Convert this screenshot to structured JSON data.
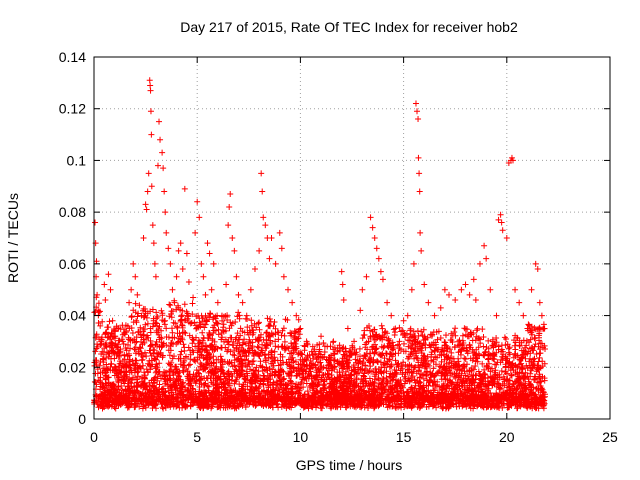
{
  "chart_data": {
    "type": "scatter",
    "title": "Day 217 of 2015, Rate Of TEC Index for receiver hob2",
    "xlabel": "GPS time / hours",
    "ylabel": "ROTI / TECUs",
    "xlim": [
      0,
      25
    ],
    "ylim": [
      0,
      0.14
    ],
    "xticks": [
      0,
      5,
      10,
      15,
      20,
      25
    ],
    "xtick_labels": [
      "0",
      "5",
      "10",
      "15",
      "20",
      "25"
    ],
    "yticks": [
      0,
      0.02,
      0.04,
      0.06,
      0.08,
      0.1,
      0.12,
      0.14
    ],
    "ytick_labels": [
      "0",
      "0.02",
      "0.04",
      "0.06",
      "0.08",
      "0.1",
      "0.12",
      "0.14"
    ],
    "grid": true,
    "marker": "+",
    "color": "#ff0000",
    "series": [
      {
        "name": "ROTI",
        "points": [
          [
            0.05,
            0.076
          ],
          [
            0.08,
            0.068
          ],
          [
            0.12,
            0.061
          ],
          [
            0.1,
            0.055
          ],
          [
            0.15,
            0.048
          ],
          [
            0.2,
            0.042
          ],
          [
            0.3,
            0.036
          ],
          [
            0.35,
            0.03
          ],
          [
            0.4,
            0.026
          ],
          [
            0.45,
            0.022
          ],
          [
            0.5,
            0.052
          ],
          [
            0.55,
            0.046
          ],
          [
            0.7,
            0.056
          ],
          [
            0.8,
            0.05
          ],
          [
            0.9,
            0.038
          ],
          [
            1.0,
            0.032
          ],
          [
            1.1,
            0.028
          ],
          [
            1.2,
            0.024
          ],
          [
            1.4,
            0.03
          ],
          [
            1.5,
            0.021
          ],
          [
            1.7,
            0.045
          ],
          [
            1.8,
            0.05
          ],
          [
            1.9,
            0.06
          ],
          [
            2.0,
            0.055
          ],
          [
            2.1,
            0.048
          ],
          [
            2.2,
            0.044
          ],
          [
            2.3,
            0.04
          ],
          [
            2.4,
            0.07
          ],
          [
            2.5,
            0.083
          ],
          [
            2.55,
            0.081
          ],
          [
            2.6,
            0.088
          ],
          [
            2.65,
            0.095
          ],
          [
            2.7,
            0.131
          ],
          [
            2.72,
            0.129
          ],
          [
            2.74,
            0.127
          ],
          [
            2.76,
            0.119
          ],
          [
            2.78,
            0.11
          ],
          [
            2.8,
            0.09
          ],
          [
            2.85,
            0.075
          ],
          [
            2.9,
            0.068
          ],
          [
            2.95,
            0.06
          ],
          [
            3.0,
            0.055
          ],
          [
            3.1,
            0.098
          ],
          [
            3.15,
            0.115
          ],
          [
            3.2,
            0.108
          ],
          [
            3.3,
            0.103
          ],
          [
            3.35,
            0.097
          ],
          [
            3.4,
            0.088
          ],
          [
            3.45,
            0.08
          ],
          [
            3.5,
            0.072
          ],
          [
            3.6,
            0.066
          ],
          [
            3.7,
            0.06
          ],
          [
            3.8,
            0.05
          ],
          [
            3.9,
            0.045
          ],
          [
            4.0,
            0.055
          ],
          [
            4.1,
            0.065
          ],
          [
            4.2,
            0.068
          ],
          [
            4.3,
            0.058
          ],
          [
            4.4,
            0.089
          ],
          [
            4.5,
            0.064
          ],
          [
            4.6,
            0.053
          ],
          [
            4.8,
            0.047
          ],
          [
            4.9,
            0.072
          ],
          [
            5.0,
            0.084
          ],
          [
            5.1,
            0.078
          ],
          [
            5.2,
            0.06
          ],
          [
            5.3,
            0.055
          ],
          [
            5.4,
            0.048
          ],
          [
            5.5,
            0.068
          ],
          [
            5.6,
            0.064
          ],
          [
            5.7,
            0.05
          ],
          [
            5.8,
            0.06
          ],
          [
            6.0,
            0.045
          ],
          [
            6.2,
            0.04
          ],
          [
            6.4,
            0.052
          ],
          [
            6.5,
            0.075
          ],
          [
            6.55,
            0.082
          ],
          [
            6.6,
            0.087
          ],
          [
            6.7,
            0.07
          ],
          [
            6.8,
            0.065
          ],
          [
            6.9,
            0.055
          ],
          [
            7.0,
            0.048
          ],
          [
            7.2,
            0.045
          ],
          [
            7.4,
            0.04
          ],
          [
            7.6,
            0.05
          ],
          [
            7.8,
            0.058
          ],
          [
            8.0,
            0.065
          ],
          [
            8.1,
            0.095
          ],
          [
            8.15,
            0.088
          ],
          [
            8.2,
            0.078
          ],
          [
            8.3,
            0.075
          ],
          [
            8.4,
            0.07
          ],
          [
            8.5,
            0.062
          ],
          [
            8.6,
            0.07
          ],
          [
            8.8,
            0.06
          ],
          [
            9.0,
            0.072
          ],
          [
            9.1,
            0.066
          ],
          [
            9.2,
            0.055
          ],
          [
            9.4,
            0.05
          ],
          [
            9.6,
            0.045
          ],
          [
            9.8,
            0.04
          ],
          [
            10.0,
            0.035
          ],
          [
            10.3,
            0.03
          ],
          [
            10.6,
            0.028
          ],
          [
            11.0,
            0.032
          ],
          [
            11.3,
            0.028
          ],
          [
            11.6,
            0.03
          ],
          [
            12.0,
            0.057
          ],
          [
            12.05,
            0.052
          ],
          [
            12.1,
            0.046
          ],
          [
            12.3,
            0.035
          ],
          [
            12.6,
            0.03
          ],
          [
            12.9,
            0.042
          ],
          [
            13.0,
            0.05
          ],
          [
            13.2,
            0.055
          ],
          [
            13.4,
            0.078
          ],
          [
            13.5,
            0.074
          ],
          [
            13.6,
            0.07
          ],
          [
            13.7,
            0.066
          ],
          [
            13.8,
            0.062
          ],
          [
            13.9,
            0.057
          ],
          [
            14.0,
            0.054
          ],
          [
            14.2,
            0.045
          ],
          [
            14.4,
            0.04
          ],
          [
            14.6,
            0.035
          ],
          [
            14.8,
            0.03
          ],
          [
            15.0,
            0.038
          ],
          [
            15.2,
            0.04
          ],
          [
            15.4,
            0.05
          ],
          [
            15.5,
            0.06
          ],
          [
            15.6,
            0.122
          ],
          [
            15.65,
            0.119
          ],
          [
            15.7,
            0.116
          ],
          [
            15.72,
            0.101
          ],
          [
            15.75,
            0.095
          ],
          [
            15.78,
            0.088
          ],
          [
            15.8,
            0.072
          ],
          [
            15.85,
            0.065
          ],
          [
            16.0,
            0.052
          ],
          [
            16.2,
            0.045
          ],
          [
            16.5,
            0.04
          ],
          [
            16.8,
            0.043
          ],
          [
            17.0,
            0.05
          ],
          [
            17.2,
            0.048
          ],
          [
            17.5,
            0.046
          ],
          [
            17.8,
            0.05
          ],
          [
            18.0,
            0.052
          ],
          [
            18.2,
            0.048
          ],
          [
            18.4,
            0.054
          ],
          [
            18.5,
            0.046
          ],
          [
            18.7,
            0.06
          ],
          [
            18.9,
            0.067
          ],
          [
            19.0,
            0.062
          ],
          [
            19.2,
            0.05
          ],
          [
            19.5,
            0.04
          ],
          [
            19.6,
            0.077
          ],
          [
            19.7,
            0.079
          ],
          [
            19.75,
            0.076
          ],
          [
            19.8,
            0.073
          ],
          [
            20.0,
            0.07
          ],
          [
            20.1,
            0.099
          ],
          [
            20.2,
            0.1
          ],
          [
            20.25,
            0.101
          ],
          [
            20.3,
            0.1
          ],
          [
            20.4,
            0.05
          ],
          [
            20.6,
            0.045
          ],
          [
            20.8,
            0.04
          ],
          [
            21.0,
            0.035
          ],
          [
            21.2,
            0.05
          ],
          [
            21.4,
            0.06
          ],
          [
            21.5,
            0.058
          ],
          [
            21.6,
            0.045
          ],
          [
            21.7,
            0.04
          ],
          [
            21.8,
            0.035
          ]
        ]
      }
    ]
  }
}
